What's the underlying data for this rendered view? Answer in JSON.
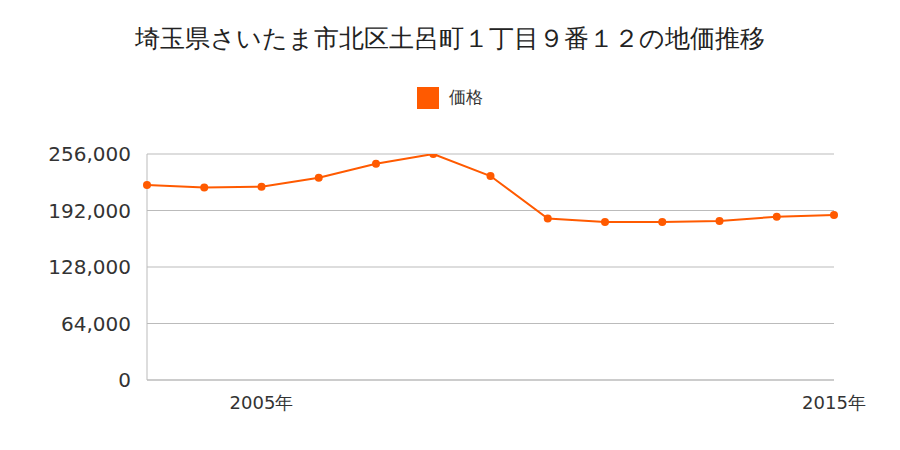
{
  "chart_data": {
    "type": "line",
    "title": "埼玉県さいたま市北区土呂町１丁目９番１２の地価推移",
    "categories": [
      null,
      null,
      "2005年",
      null,
      null,
      null,
      null,
      null,
      null,
      null,
      null,
      null,
      "2015年"
    ],
    "series": [
      {
        "name": "価格",
        "color": "#ff5a00",
        "marker": "circle",
        "values": [
          221000,
          218000,
          219000,
          229000,
          245000,
          256000,
          231000,
          183000,
          179000,
          179000,
          180000,
          185000,
          187000
        ]
      }
    ],
    "ylim": [
      0,
      256000
    ],
    "yticks": [
      {
        "value": 0,
        "label": "0"
      },
      {
        "value": 64000,
        "label": "64,000"
      },
      {
        "value": 128000,
        "label": "128,000"
      },
      {
        "value": 192000,
        "label": "192,000"
      },
      {
        "value": 256000,
        "label": "256,000"
      }
    ],
    "grid": true
  }
}
